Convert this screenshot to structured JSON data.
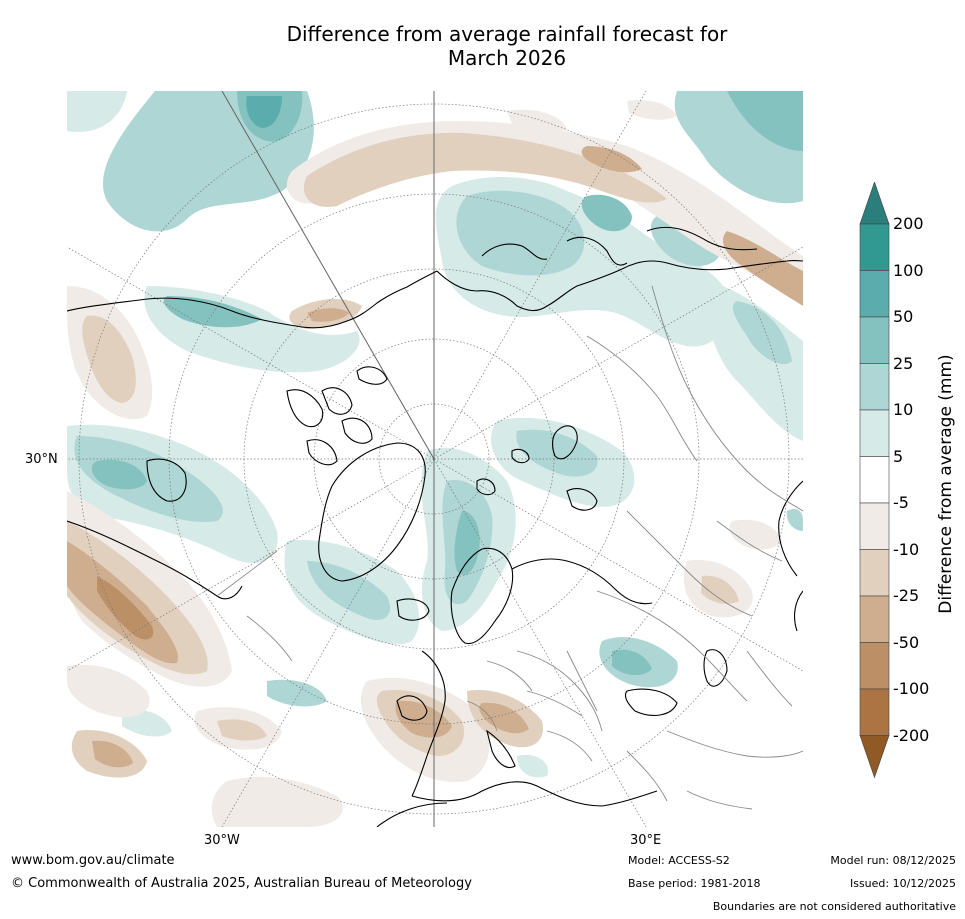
{
  "title": {
    "line1": "Difference from average rainfall forecast for",
    "line2": "March 2026"
  },
  "map": {
    "projection": "north-polar-stereographic",
    "gridline_labels": {
      "lat_30n": "30°N",
      "lon_30w": "30°W",
      "lon_30e": "30°E"
    }
  },
  "colorbar": {
    "title": "Difference from average (mm)",
    "ticks": [
      "200",
      "100",
      "50",
      "25",
      "10",
      "5",
      "-5",
      "-10",
      "-25",
      "-50",
      "-100",
      "-200"
    ],
    "colors": {
      "above_200": "#2a7e7c",
      "100_200": "#31998f",
      "50_100": "#5aacad",
      "25_50": "#84c2c0",
      "10_25": "#aed6d4",
      "5_10": "#d6eae8",
      "neutral": "#ffffff",
      "neg5_neg10": "#f0ebe6",
      "neg10_neg25": "#e2d0be",
      "neg25_neg50": "#cfae90",
      "neg50_neg100": "#bc9067",
      "neg100_neg200": "#ad7443",
      "below_neg200": "#8f5a25"
    }
  },
  "footer": {
    "website": "www.bom.gov.au/climate",
    "copyright": "© Commonwealth of Australia 2025, Australian Bureau of Meteorology",
    "model": "Model: ACCESS-S2",
    "base_period": "Base period: 1981-2018",
    "model_run": "Model run: 08/12/2025",
    "issued": "Issued: 10/12/2025",
    "disclaimer": "Boundaries are not considered authoritative"
  }
}
